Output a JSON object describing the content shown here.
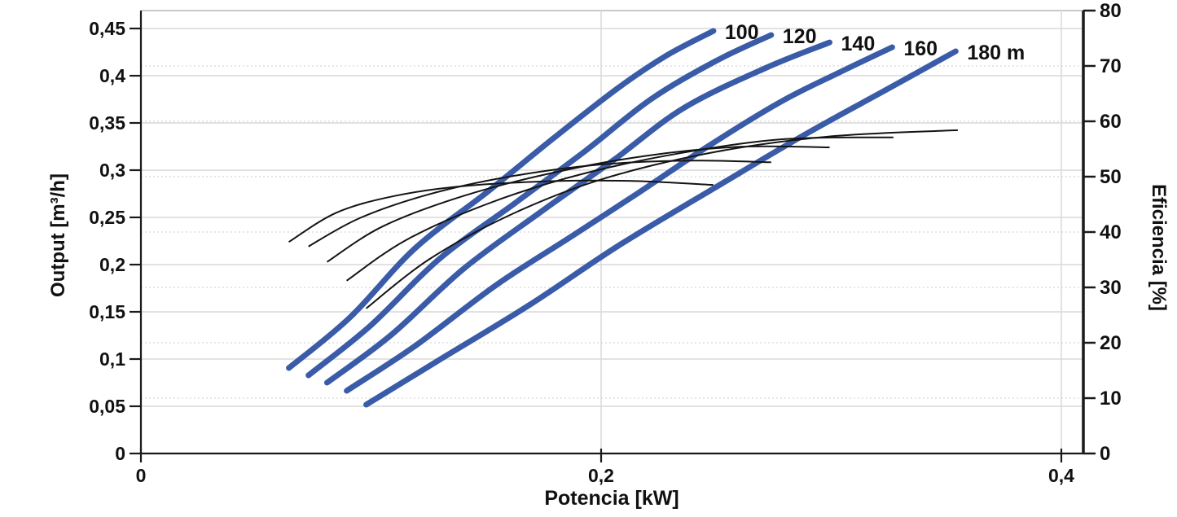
{
  "chart_data": {
    "type": "line",
    "title": "",
    "xlabel": "Potencia [kW]",
    "ylabel_left": "Output [m³/h]",
    "ylabel_right": "Eficiencia [%]",
    "legend_position": "none",
    "grid": "major-solid-horizontal, minor-dotted-horizontal, vertical-at-x-ticks",
    "x_axis": {
      "min": 0,
      "max": 0.409,
      "ticks": [
        {
          "value": 0,
          "label": "0"
        },
        {
          "value": 0.2,
          "label": "0,2"
        },
        {
          "value": 0.4,
          "label": "0,4"
        }
      ]
    },
    "y_left_axis": {
      "min": 0,
      "max": 0.469,
      "ticks": [
        {
          "value": 0,
          "label": "0"
        },
        {
          "value": 0.05,
          "label": "0,05"
        },
        {
          "value": 0.1,
          "label": "0,1"
        },
        {
          "value": 0.15,
          "label": "0,15"
        },
        {
          "value": 0.2,
          "label": "0,2"
        },
        {
          "value": 0.25,
          "label": "0,25"
        },
        {
          "value": 0.3,
          "label": "0,3"
        },
        {
          "value": 0.35,
          "label": "0,35"
        },
        {
          "value": 0.4,
          "label": "0,4"
        },
        {
          "value": 0.45,
          "label": "0,45"
        }
      ]
    },
    "y_right_axis": {
      "min": 0,
      "max": 80,
      "ticks": [
        {
          "value": 0,
          "label": "0"
        },
        {
          "value": 10,
          "label": "10"
        },
        {
          "value": 20,
          "label": "20"
        },
        {
          "value": 30,
          "label": "30"
        },
        {
          "value": 40,
          "label": "40"
        },
        {
          "value": 50,
          "label": "50"
        },
        {
          "value": 60,
          "label": "60"
        },
        {
          "value": 70,
          "label": "70"
        },
        {
          "value": 80,
          "label": "80"
        }
      ]
    },
    "colors": {
      "head_curve": "#3a5ca8",
      "efficiency_curve": "#141414",
      "grid_major": "#d9d9d9",
      "grid_minor": "#dedede",
      "axis": "#1a1a1a"
    },
    "head_curves": [
      {
        "head_m": 100,
        "label": "100",
        "points": [
          [
            0.0643,
            0.0905
          ],
          [
            0.0908,
            0.144
          ],
          [
            0.1191,
            0.2172
          ],
          [
            0.1509,
            0.2776
          ],
          [
            0.1792,
            0.3336
          ],
          [
            0.2074,
            0.3871
          ],
          [
            0.2286,
            0.4216
          ],
          [
            0.2488,
            0.4474
          ]
        ]
      },
      {
        "head_m": 120,
        "label": "120",
        "points": [
          [
            0.0728,
            0.0828
          ],
          [
            0.0997,
            0.1353
          ],
          [
            0.1297,
            0.206
          ],
          [
            0.1633,
            0.2664
          ],
          [
            0.1933,
            0.3207
          ],
          [
            0.2216,
            0.375
          ],
          [
            0.2498,
            0.4155
          ],
          [
            0.2739,
            0.4431
          ]
        ]
      },
      {
        "head_m": 140,
        "label": "140",
        "points": [
          [
            0.0809,
            0.075
          ],
          [
            0.1085,
            0.125
          ],
          [
            0.1403,
            0.1957
          ],
          [
            0.1739,
            0.256
          ],
          [
            0.2057,
            0.3112
          ],
          [
            0.2357,
            0.3655
          ],
          [
            0.2711,
            0.4078
          ],
          [
            0.2993,
            0.4353
          ]
        ]
      },
      {
        "head_m": 160,
        "label": "160",
        "points": [
          [
            0.0894,
            0.0664
          ],
          [
            0.1191,
            0.1138
          ],
          [
            0.1544,
            0.1784
          ],
          [
            0.1862,
            0.2284
          ],
          [
            0.2145,
            0.2733
          ],
          [
            0.2463,
            0.325
          ],
          [
            0.2781,
            0.3724
          ],
          [
            0.3028,
            0.4026
          ],
          [
            0.3265,
            0.4302
          ]
        ]
      },
      {
        "head_m": 180,
        "label": "180 m",
        "points": [
          [
            0.0979,
            0.0517
          ],
          [
            0.1297,
            0.0991
          ],
          [
            0.1686,
            0.1569
          ],
          [
            0.2074,
            0.2198
          ],
          [
            0.2498,
            0.2819
          ],
          [
            0.2887,
            0.3379
          ],
          [
            0.324,
            0.3853
          ],
          [
            0.3541,
            0.4259
          ]
        ]
      }
    ],
    "efficiency_curves": [
      {
        "head_m": 100,
        "points": [
          [
            0.0643,
            38.2
          ],
          [
            0.085,
            43.5
          ],
          [
            0.11,
            46.5
          ],
          [
            0.14,
            48.3
          ],
          [
            0.18,
            49.2
          ],
          [
            0.215,
            49.2
          ],
          [
            0.2488,
            48.5
          ]
        ]
      },
      {
        "head_m": 120,
        "points": [
          [
            0.0728,
            37.4
          ],
          [
            0.095,
            42.5
          ],
          [
            0.125,
            46.8
          ],
          [
            0.16,
            50.0
          ],
          [
            0.2,
            52.2
          ],
          [
            0.24,
            52.9
          ],
          [
            0.2739,
            52.6
          ]
        ]
      },
      {
        "head_m": 140,
        "points": [
          [
            0.0809,
            34.6
          ],
          [
            0.105,
            41.0
          ],
          [
            0.14,
            46.5
          ],
          [
            0.18,
            50.8
          ],
          [
            0.22,
            53.8
          ],
          [
            0.26,
            55.4
          ],
          [
            0.2993,
            55.3
          ]
        ]
      },
      {
        "head_m": 160,
        "points": [
          [
            0.0894,
            31.2
          ],
          [
            0.115,
            38.5
          ],
          [
            0.15,
            45.0
          ],
          [
            0.19,
            50.3
          ],
          [
            0.235,
            54.3
          ],
          [
            0.28,
            56.8
          ],
          [
            0.327,
            57.1
          ]
        ]
      },
      {
        "head_m": 180,
        "points": [
          [
            0.0979,
            26.2
          ],
          [
            0.125,
            35.0
          ],
          [
            0.16,
            43.0
          ],
          [
            0.2,
            49.5
          ],
          [
            0.25,
            54.5
          ],
          [
            0.3,
            57.3
          ],
          [
            0.355,
            58.4
          ]
        ]
      }
    ]
  }
}
